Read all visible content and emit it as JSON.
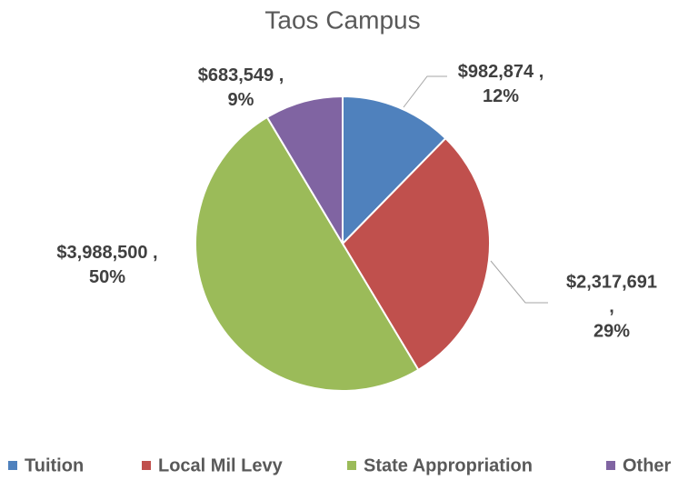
{
  "chart_data": {
    "type": "pie",
    "title": "Taos Campus",
    "categories": [
      "Tuition",
      "Local Mil Levy",
      "State Appropriation",
      "Other"
    ],
    "values": [
      982874,
      2317691,
      3988500,
      683549
    ],
    "value_labels": [
      "$982,874 ,\n12%",
      "$2,317,691 ,\n29%",
      "$3,988,500 ,\n50%",
      "$683,549 ,\n9%"
    ],
    "colors": [
      "#4f81bd",
      "#c0504d",
      "#9bbb59",
      "#8064a2"
    ],
    "legend": "bottom"
  }
}
